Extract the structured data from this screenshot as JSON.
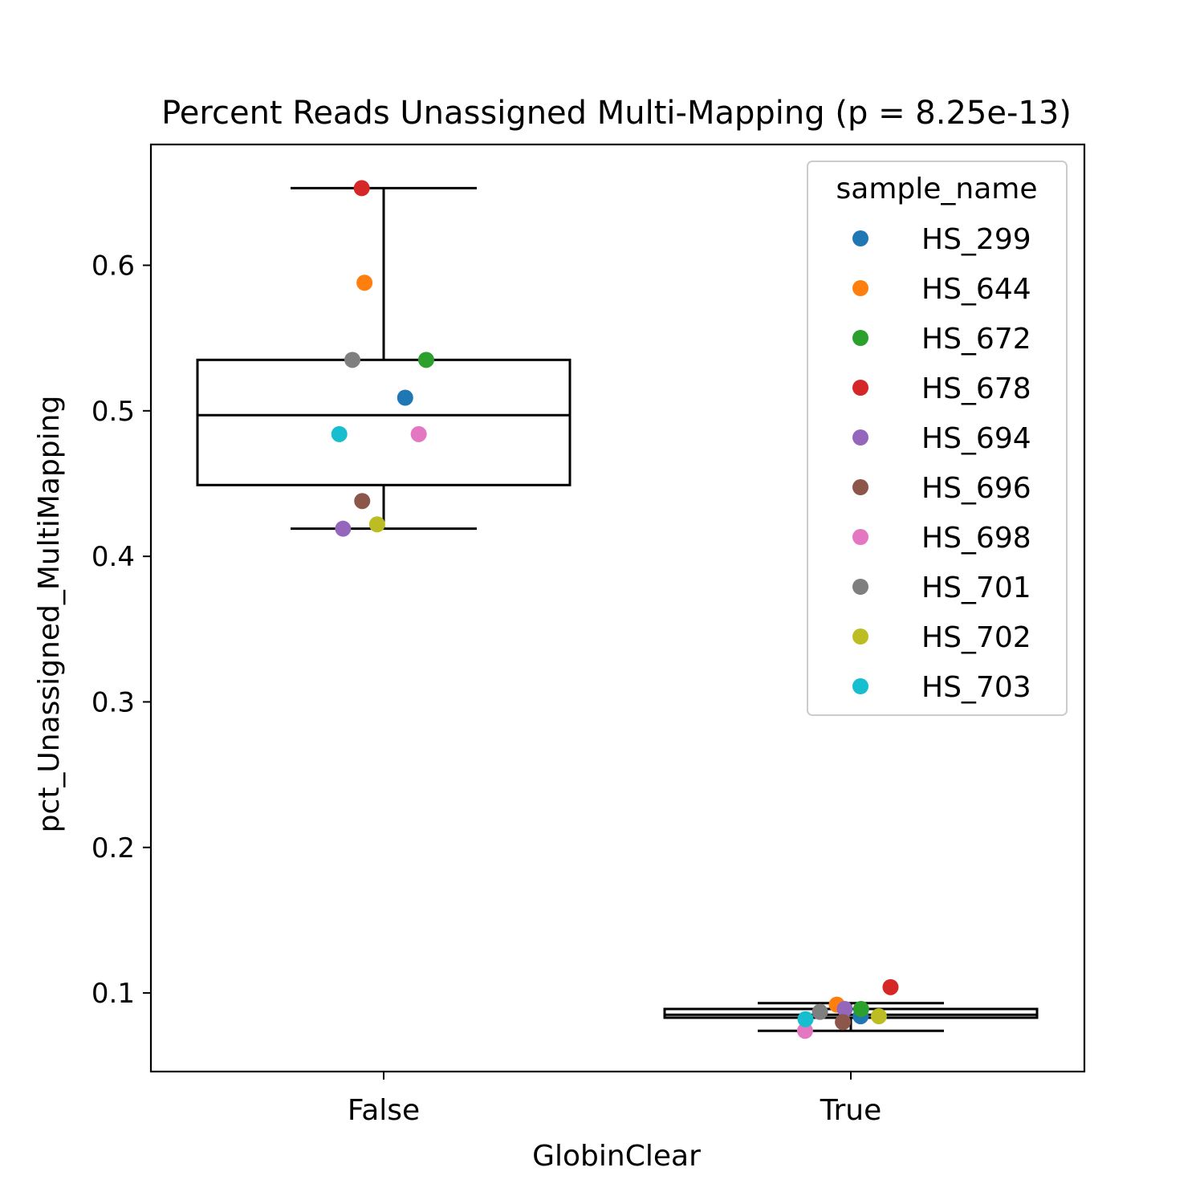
{
  "chart_data": {
    "type": "box",
    "title": "Percent Reads Unassigned Multi-Mapping (p = 8.25e-13)",
    "xlabel": "GlobinClear",
    "ylabel": "pct_Unassigned_MultiMapping",
    "categories": [
      "False",
      "True"
    ],
    "ylim": [
      0.046,
      0.683
    ],
    "yticks": [
      0.1,
      0.2,
      0.3,
      0.4,
      0.5,
      0.6
    ],
    "ytick_labels": [
      "0.1",
      "0.2",
      "0.3",
      "0.4",
      "0.5",
      "0.6"
    ],
    "grid": false,
    "boxes": [
      {
        "category": "False",
        "whisker_low": 0.419,
        "q1": 0.449,
        "median": 0.497,
        "q3": 0.535,
        "whisker_high": 0.653
      },
      {
        "category": "True",
        "whisker_low": 0.074,
        "q1": 0.083,
        "median": 0.085,
        "q3": 0.089,
        "whisker_high": 0.093
      }
    ],
    "legend": {
      "title": "sample_name",
      "placement": "top-right"
    },
    "series": [
      {
        "name": "HS_299",
        "color": "#1f77b4",
        "points": [
          {
            "x": "False",
            "jitter": 0.046,
            "y": 0.509
          },
          {
            "x": "True",
            "jitter": 0.021,
            "y": 0.084
          }
        ]
      },
      {
        "name": "HS_644",
        "color": "#ff7f0e",
        "points": [
          {
            "x": "False",
            "jitter": -0.041,
            "y": 0.588
          },
          {
            "x": "True",
            "jitter": -0.03,
            "y": 0.092
          }
        ]
      },
      {
        "name": "HS_672",
        "color": "#2ca02c",
        "points": [
          {
            "x": "False",
            "jitter": 0.091,
            "y": 0.535
          },
          {
            "x": "True",
            "jitter": 0.022,
            "y": 0.089
          }
        ]
      },
      {
        "name": "HS_678",
        "color": "#d62728",
        "points": [
          {
            "x": "False",
            "jitter": -0.047,
            "y": 0.653
          },
          {
            "x": "True",
            "jitter": 0.085,
            "y": 0.104
          }
        ]
      },
      {
        "name": "HS_694",
        "color": "#9467bd",
        "points": [
          {
            "x": "False",
            "jitter": -0.087,
            "y": 0.419
          },
          {
            "x": "True",
            "jitter": -0.013,
            "y": 0.089
          }
        ]
      },
      {
        "name": "HS_696",
        "color": "#8c564b",
        "points": [
          {
            "x": "False",
            "jitter": -0.046,
            "y": 0.438
          },
          {
            "x": "True",
            "jitter": -0.017,
            "y": 0.08
          }
        ]
      },
      {
        "name": "HS_698",
        "color": "#e377c2",
        "points": [
          {
            "x": "False",
            "jitter": 0.075,
            "y": 0.484
          },
          {
            "x": "True",
            "jitter": -0.098,
            "y": 0.074
          }
        ]
      },
      {
        "name": "HS_701",
        "color": "#7f7f7f",
        "points": [
          {
            "x": "False",
            "jitter": -0.067,
            "y": 0.535
          },
          {
            "x": "True",
            "jitter": -0.066,
            "y": 0.087
          }
        ]
      },
      {
        "name": "HS_702",
        "color": "#bcbd22",
        "points": [
          {
            "x": "False",
            "jitter": -0.014,
            "y": 0.422
          },
          {
            "x": "True",
            "jitter": 0.06,
            "y": 0.084
          }
        ]
      },
      {
        "name": "HS_703",
        "color": "#17becf",
        "points": [
          {
            "x": "False",
            "jitter": -0.095,
            "y": 0.484
          },
          {
            "x": "True",
            "jitter": -0.097,
            "y": 0.082
          }
        ]
      }
    ]
  }
}
